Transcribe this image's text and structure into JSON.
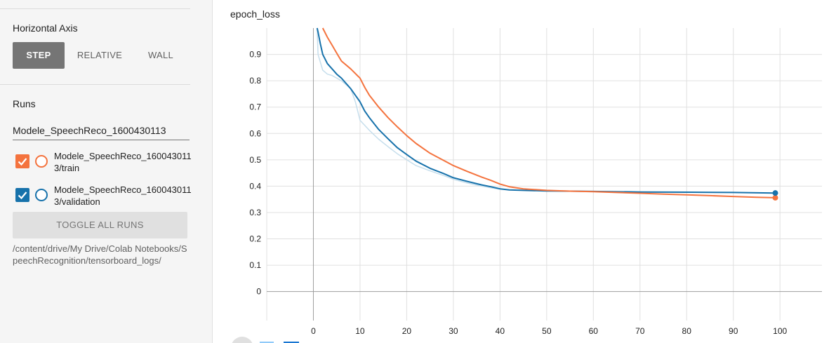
{
  "sidebar": {
    "horizontal_axis": {
      "title": "Horizontal Axis",
      "options": [
        "STEP",
        "RELATIVE",
        "WALL"
      ],
      "selected": "STEP"
    },
    "runs": {
      "title": "Runs",
      "filter_value": "Modele_SpeechReco_1600430113",
      "items": [
        {
          "label": "Modele_SpeechReco_1600430113/train",
          "checked": true,
          "color": "#f4733e"
        },
        {
          "label": "Modele_SpeechReco_1600430113/validation",
          "checked": true,
          "color": "#1772ab"
        }
      ],
      "toggle_label": "TOGGLE ALL RUNS",
      "logdir": "/content/drive/My Drive/Colab Notebooks/SpeechRecognition/tensorboard_logs/"
    }
  },
  "chart_title": "epoch_loss",
  "chart_data": {
    "type": "line",
    "title": "epoch_loss",
    "xlabel": "",
    "ylabel": "",
    "xlim": [
      -10,
      109
    ],
    "ylim": [
      -0.11,
      1.0
    ],
    "x_ticks": [
      0,
      10,
      20,
      30,
      40,
      50,
      60,
      70,
      80,
      90,
      100
    ],
    "y_ticks": [
      0,
      0.1,
      0.2,
      0.3,
      0.4,
      0.5,
      0.6,
      0.7,
      0.8,
      0.9
    ],
    "grid": true,
    "series": [
      {
        "color": "#f4733e",
        "x": [
          2,
          3,
          4,
          5,
          6,
          8,
          10,
          11,
          12,
          14,
          16,
          18,
          20,
          22,
          25,
          28,
          30,
          33,
          36,
          38,
          40,
          42,
          45,
          50,
          55,
          60,
          65,
          70,
          75,
          80,
          85,
          90,
          95,
          99
        ],
        "y": [
          1.0,
          0.965,
          0.935,
          0.905,
          0.875,
          0.845,
          0.81,
          0.775,
          0.745,
          0.7,
          0.66,
          0.625,
          0.592,
          0.562,
          0.525,
          0.497,
          0.478,
          0.456,
          0.435,
          0.422,
          0.408,
          0.398,
          0.39,
          0.384,
          0.381,
          0.379,
          0.376,
          0.373,
          0.37,
          0.367,
          0.364,
          0.361,
          0.358,
          0.356
        ]
      },
      {
        "color": "#1772ab",
        "x": [
          0.8,
          1,
          1.5,
          2,
          3,
          4,
          5,
          6,
          8,
          10,
          11,
          12,
          14,
          16,
          18,
          20,
          22,
          25,
          28,
          30,
          33,
          36,
          38,
          40,
          42,
          45,
          50,
          55,
          60,
          70,
          80,
          90,
          99
        ],
        "y": [
          1.0,
          0.985,
          0.94,
          0.9,
          0.865,
          0.845,
          0.825,
          0.81,
          0.77,
          0.72,
          0.685,
          0.66,
          0.615,
          0.58,
          0.546,
          0.52,
          0.495,
          0.468,
          0.447,
          0.432,
          0.418,
          0.405,
          0.398,
          0.39,
          0.386,
          0.384,
          0.382,
          0.381,
          0.38,
          0.378,
          0.377,
          0.376,
          0.374
        ]
      },
      {
        "color": "#c6deec",
        "x": [
          0.8,
          1,
          2,
          3,
          4,
          5,
          6,
          7,
          8,
          9,
          10,
          12,
          14,
          16,
          18,
          20,
          22,
          25,
          28,
          30,
          33,
          36,
          40
        ],
        "y": [
          1.0,
          0.9,
          0.84,
          0.825,
          0.82,
          0.81,
          0.8,
          0.785,
          0.77,
          0.72,
          0.65,
          0.612,
          0.578,
          0.55,
          0.523,
          0.5,
          0.478,
          0.458,
          0.44,
          0.426,
          0.412,
          0.4,
          0.388
        ]
      }
    ]
  }
}
